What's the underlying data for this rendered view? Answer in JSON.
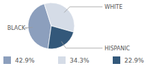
{
  "chart_data": {
    "type": "pie",
    "categories": [
      "BLACK",
      "WHITE",
      "HISPANIC"
    ],
    "values": [
      42.9,
      34.3,
      22.9
    ],
    "value_labels": [
      "42.9%",
      "34.3%",
      "22.9%"
    ],
    "colors": [
      "#8c9fbd",
      "#d5dce7",
      "#33587a"
    ]
  }
}
